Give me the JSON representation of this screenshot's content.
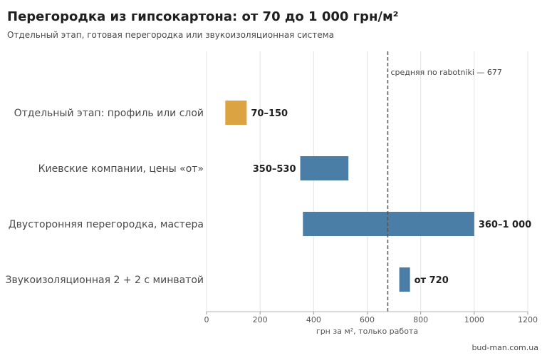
{
  "chart_data": {
    "type": "bar",
    "orientation": "horizontal-range",
    "title": "Перегородка из гипсокартона: от 70 до 1 000 грн/м²",
    "subtitle": "Отдельный этап, готовая перегородка или звукоизоляционная система",
    "xlabel": "грн за м², только работа",
    "xlim": [
      0,
      1200
    ],
    "xticks": [
      0,
      200,
      400,
      600,
      800,
      1000,
      1200
    ],
    "grid": true,
    "categories": [
      "Отдельный этап: профиль или слой",
      "Киевские компании, цены «от»",
      "Двусторонняя перегородка, мастера",
      "Звукоизоляционная 2 + 2 с минватой"
    ],
    "ranges": [
      {
        "start": 70,
        "end": 150,
        "label": "70–150",
        "label_side": "right",
        "color": "#dca342"
      },
      {
        "start": 350,
        "end": 530,
        "label": "350–530",
        "label_side": "left",
        "color": "#4a7ea6"
      },
      {
        "start": 360,
        "end": 1000,
        "label": "360–1 000",
        "label_side": "right",
        "color": "#4a7ea6"
      },
      {
        "start": 720,
        "end": 760,
        "label": "от 720",
        "label_side": "right",
        "color": "#4a7ea6"
      }
    ],
    "reference_line": {
      "value": 677,
      "label": "средняя по rabotniki — 677"
    }
  },
  "source": "bud-man.com.ua"
}
